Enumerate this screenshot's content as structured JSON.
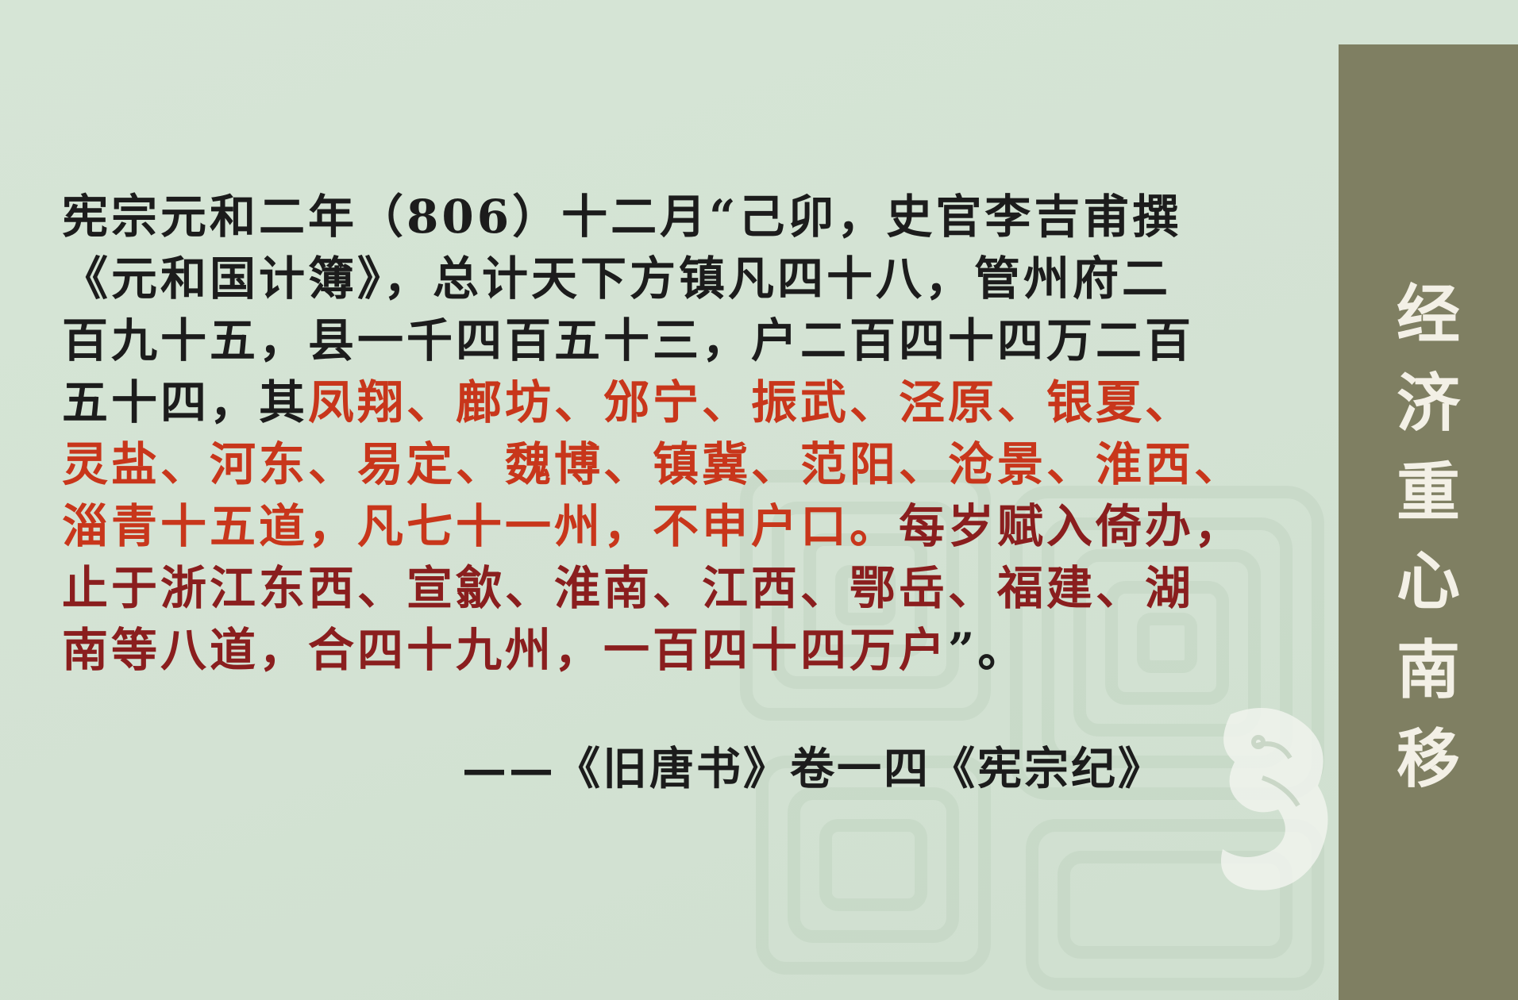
{
  "side_title": [
    "经",
    "济",
    "重",
    "心",
    "南",
    "移"
  ],
  "quote": {
    "line1": "宪宗元和二年（806）十二月“己卯，史官李吉甫撰",
    "line2": "《元和国计簿》，总计天下方镇凡四十八，管州府二",
    "line3": "百九十五，县一千四百五十三，户二百四十四万二百",
    "line4_black": "五十四，其",
    "line4_red": "凤翔、鄜坊、邠宁、振武、泾原、银夏、",
    "line5_red": "灵盐、河东、易定、魏博、镇冀、范阳、沧景、淮西、",
    "line6_red": "淄青十五道，凡七十一州，不申户口。",
    "line6_maroon": "每岁赋入倚办，",
    "line7_maroon": "止于浙江东西、宣歙、淮南、江西、鄂岳、福建、湖",
    "line8_maroon": "南等八道，合四十九州，一百四十四万户",
    "line8_end": "”。"
  },
  "source": "——《旧唐书》卷一四《宪宗纪》",
  "colors": {
    "background": "#d4e3d4",
    "banner": "#7f7f62",
    "highlight_red": "#c8361b",
    "highlight_maroon": "#8a1e1e",
    "text": "#1c1c1c"
  }
}
